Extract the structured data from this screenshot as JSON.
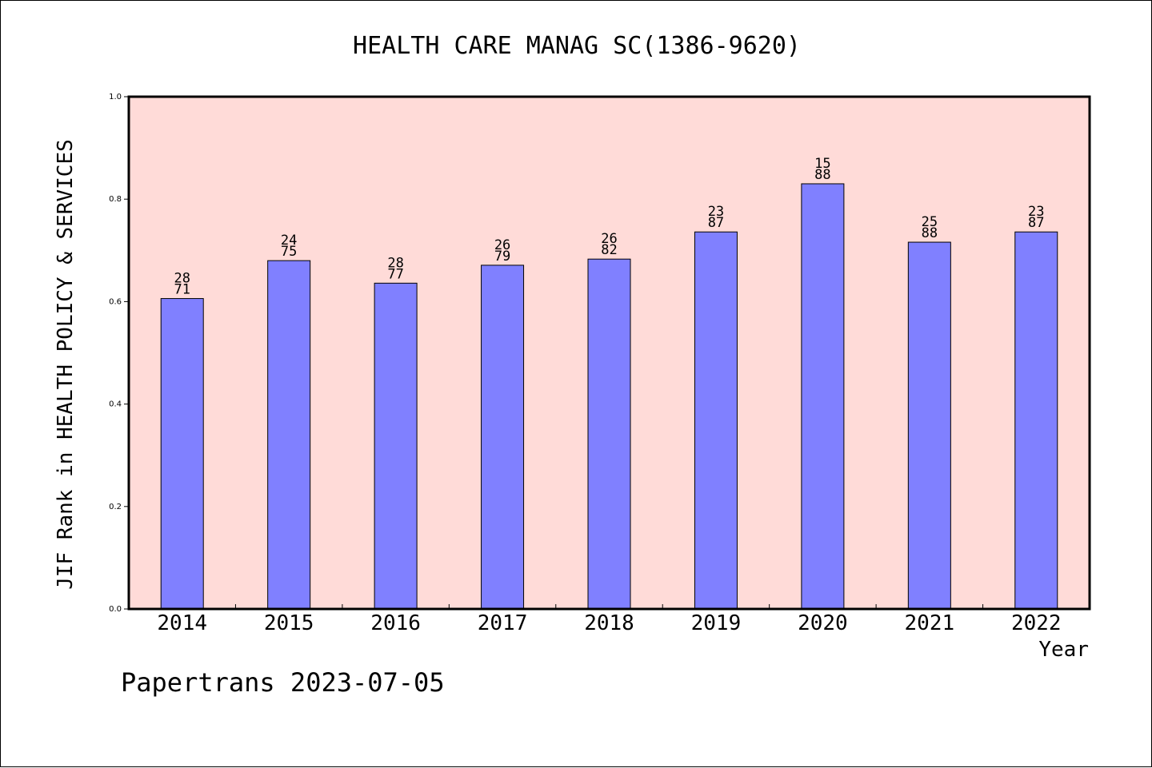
{
  "chart_data": {
    "type": "bar",
    "title": "HEALTH CARE MANAG SC(1386-9620)",
    "xlabel": "Year",
    "ylabel": "JIF Rank in HEALTH POLICY & SERVICES",
    "ylim": [
      0,
      1.0
    ],
    "yticks": [
      "0.0",
      "0.2",
      "0.4",
      "0.6",
      "0.8",
      "1.0"
    ],
    "categories": [
      "2014",
      "2015",
      "2016",
      "2017",
      "2018",
      "2019",
      "2020",
      "2021",
      "2022"
    ],
    "values": [
      0.606,
      0.68,
      0.636,
      0.671,
      0.683,
      0.736,
      0.83,
      0.716,
      0.736
    ],
    "rank": [
      "28",
      "24",
      "28",
      "26",
      "26",
      "23",
      "15",
      "25",
      "23"
    ],
    "total": [
      "71",
      "75",
      "77",
      "79",
      "82",
      "87",
      "88",
      "88",
      "87"
    ],
    "grid": false,
    "colors": {
      "bar": "#8080ff",
      "plot_bg": "#ffdbd8",
      "axis": "#000000"
    },
    "footer": "Papertrans 2023-07-05"
  }
}
